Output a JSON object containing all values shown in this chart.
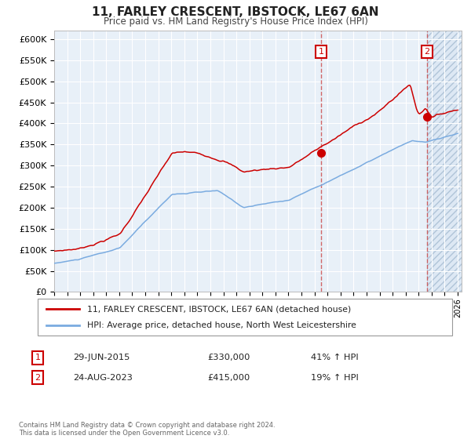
{
  "title": "11, FARLEY CRESCENT, IBSTOCK, LE67 6AN",
  "subtitle": "Price paid vs. HM Land Registry's House Price Index (HPI)",
  "legend_line1": "11, FARLEY CRESCENT, IBSTOCK, LE67 6AN (detached house)",
  "legend_line2": "HPI: Average price, detached house, North West Leicestershire",
  "annotation1_date": "29-JUN-2015",
  "annotation1_price": "£330,000",
  "annotation1_hpi": "41% ↑ HPI",
  "annotation2_date": "24-AUG-2023",
  "annotation2_price": "£415,000",
  "annotation2_hpi": "19% ↑ HPI",
  "footer": "Contains HM Land Registry data © Crown copyright and database right 2024.\nThis data is licensed under the Open Government Licence v3.0.",
  "red_color": "#cc0000",
  "blue_color": "#7aabe0",
  "bg_color": "#e8f0f8",
  "annotation_box_color": "#cc0000",
  "dashed_line_color": "#cc4444",
  "ylim": [
    0,
    620000
  ],
  "yticks": [
    0,
    50000,
    100000,
    150000,
    200000,
    250000,
    300000,
    350000,
    400000,
    450000,
    500000,
    550000,
    600000
  ],
  "sale1_year": 2015.5,
  "sale1_y": 330000,
  "sale2_year": 2023.65,
  "sale2_y": 415000,
  "hatch_start_year": 2023.65,
  "xlim_start": 1995.0,
  "xlim_end": 2026.3
}
